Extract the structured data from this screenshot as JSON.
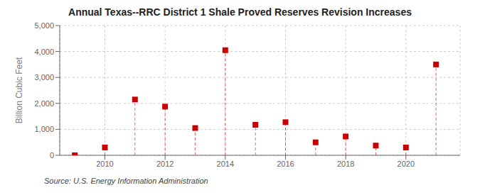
{
  "chart_data": {
    "type": "stem",
    "title": "Annual Texas--RRC District 1 Shale Proved Reserves Revision Increases",
    "ylabel": "Billion Cubic Feet",
    "source": "Source: U.S. Energy Information Administration",
    "x": [
      2009,
      2010,
      2011,
      2012,
      2013,
      2014,
      2015,
      2016,
      2017,
      2018,
      2019,
      2020,
      2021
    ],
    "values": [
      0,
      300,
      2150,
      1875,
      1050,
      4050,
      1175,
      1275,
      500,
      725,
      375,
      300,
      3500
    ],
    "color": "#cc0000",
    "marker": "square",
    "line_style": "dashed",
    "xlim": [
      2008.5,
      2021.8
    ],
    "xticks": [
      2010,
      2012,
      2014,
      2016,
      2018,
      2020
    ],
    "ylim": [
      0,
      5000
    ],
    "yticks": [
      0,
      {
        "value": 1000,
        "label": "1,000"
      },
      {
        "value": 2000,
        "label": "2,000"
      },
      {
        "value": 3000,
        "label": "3,000"
      },
      {
        "value": 4000,
        "label": "4,000"
      },
      {
        "value": 5000,
        "label": "5,000"
      }
    ],
    "grid": true
  }
}
